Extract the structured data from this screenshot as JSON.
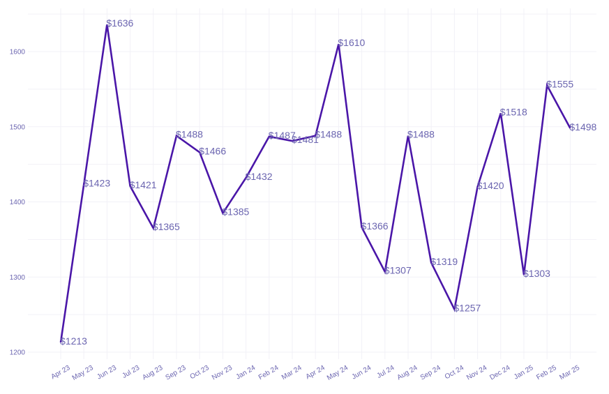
{
  "chart_data": {
    "type": "line",
    "categories": [
      "Apr 23",
      "May 23",
      "Jun 23",
      "Jul 23",
      "Aug 23",
      "Sep 23",
      "Oct 23",
      "Nov 23",
      "Jan 24",
      "Feb 24",
      "Mar 24",
      "Apr 24",
      "May 24",
      "Jun 24",
      "Jul 24",
      "Aug 24",
      "Sep 24",
      "Oct 24",
      "Nov 24",
      "Dec 24",
      "Jan 25",
      "Feb 25",
      "Mar 25"
    ],
    "series": [
      {
        "values": [
          1213,
          1423,
          1636,
          1421,
          1365,
          1488,
          1466,
          1385,
          1432,
          1487,
          1481,
          1488,
          1610,
          1366,
          1307,
          1488,
          1319,
          1257,
          1420,
          1518,
          1303,
          1555,
          1498
        ],
        "labels": [
          "$1213",
          "$1423",
          "$1636",
          "$1421",
          "$1365",
          "$1488",
          "$1466",
          "$1385",
          "$1432",
          "$1487",
          "$1481",
          "$1488",
          "$1610",
          "$1366",
          "$1307",
          "$1488",
          "$1319",
          "$1257",
          "$1420",
          "$1518",
          "$1303",
          "$1555",
          "$1498"
        ]
      }
    ],
    "yticks": [
      1200,
      1300,
      1400,
      1500,
      1600
    ],
    "ylim": [
      1190,
      1660
    ],
    "title": "",
    "xlabel": "",
    "ylabel": "",
    "grid": true,
    "line_color": "#4a16a8"
  }
}
